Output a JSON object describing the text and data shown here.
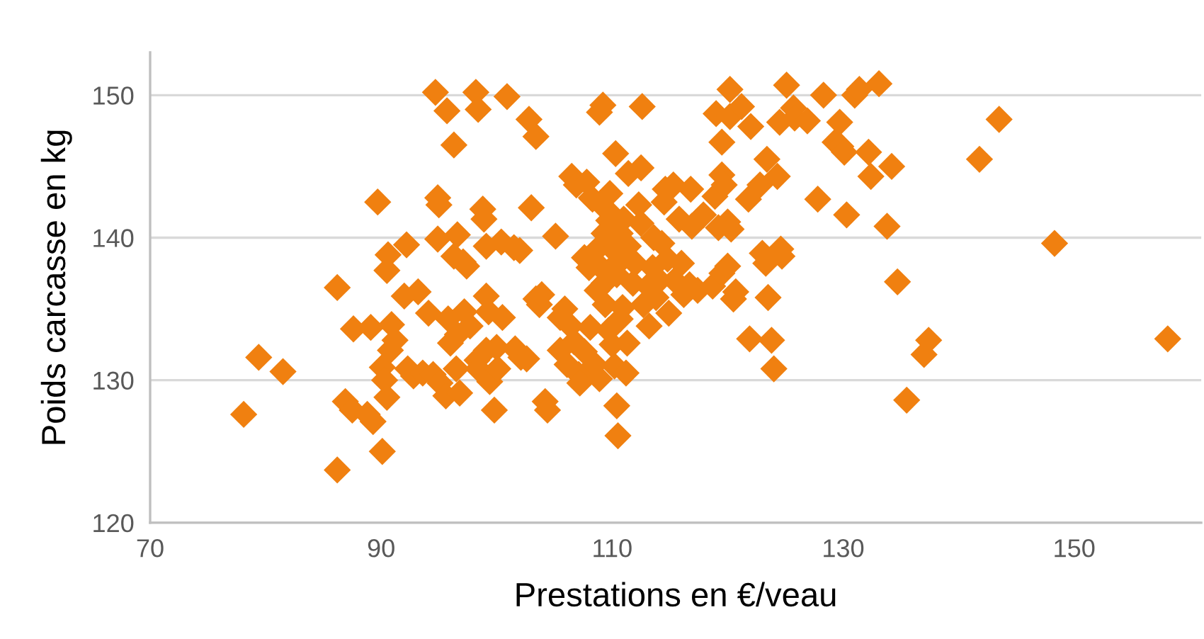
{
  "chart_data": {
    "type": "scatter",
    "xlabel": "Prestations en €/veau",
    "ylabel": "Poids carcasse en kg",
    "xlim": [
      70,
      161
    ],
    "xticks": [
      70,
      90,
      110,
      130,
      150
    ],
    "ylim": [
      120,
      153
    ],
    "yticks": [
      120,
      130,
      140,
      150
    ],
    "grid": "y",
    "marker": "diamond",
    "series": [
      {
        "color": "#f08010",
        "x": [
          78.1,
          79.4,
          81.5,
          86.2,
          86.2,
          86.9,
          87.5,
          87.6,
          88.8,
          89.3,
          89.1,
          89.7,
          90.1,
          90.1,
          90.3,
          90.6,
          90.5,
          90.5,
          90.9,
          90.8,
          91.2,
          92.2,
          92.0,
          92.3,
          92.8,
          93.2,
          93.6,
          94.1,
          94.5,
          94.7,
          94.9,
          95.0,
          94.9,
          95.1,
          95.6,
          95.7,
          95.8,
          96.0,
          96.3,
          96.3,
          96.5,
          96.6,
          96.6,
          96.8,
          97.1,
          97.2,
          97.4,
          97.7,
          98.2,
          98.4,
          98.3,
          98.4,
          98.8,
          98.9,
          99.1,
          99.1,
          99.1,
          99.3,
          99.4,
          99.8,
          100.0,
          100.1,
          100.4,
          100.5,
          100.9,
          101.5,
          101.6,
          102.0,
          102.1,
          102.6,
          102.8,
          103.0,
          103.4,
          103.4,
          103.7,
          103.9,
          104.2,
          104.4,
          105.1,
          105.5,
          105.5,
          105.9,
          106.1,
          106.4,
          106.5,
          106.7,
          106.9,
          107.1,
          107.2,
          107.6,
          107.6,
          107.8,
          108.0,
          108.1,
          108.2,
          108.3,
          108.5,
          108.6,
          108.7,
          108.8,
          108.9,
          108.9,
          109.2,
          109.3,
          109.3,
          109.4,
          109.6,
          109.7,
          109.7,
          109.8,
          109.9,
          110.0,
          110.2,
          110.2,
          110.3,
          110.4,
          110.4,
          110.4,
          110.5,
          110.7,
          110.7,
          110.9,
          110.9,
          111.0,
          111.2,
          111.3,
          111.4,
          111.4,
          111.8,
          112.0,
          112.3,
          112.5,
          112.5,
          112.6,
          112.7,
          113.1,
          113.2,
          113.5,
          113.6,
          113.8,
          114.1,
          114.3,
          114.5,
          114.6,
          114.8,
          114.9,
          115.3,
          115.4,
          115.8,
          116.0,
          116.2,
          116.7,
          116.8,
          116.9,
          117.4,
          117.9,
          118.7,
          118.9,
          119.0,
          119.2,
          119.5,
          119.5,
          119.5,
          119.7,
          120.0,
          120.0,
          120.2,
          120.2,
          120.3,
          120.5,
          120.7,
          121.2,
          121.8,
          121.9,
          122.0,
          122.8,
          123.0,
          123.3,
          123.4,
          123.5,
          123.8,
          124.3,
          124.5,
          124.6,
          124.7,
          125.1,
          125.7,
          125.8,
          124.0,
          126.9,
          127.8,
          128.3,
          129.3,
          129.7,
          129.8,
          130.1,
          130.3,
          131.0,
          131.4,
          132.2,
          132.4,
          133.1,
          133.8,
          134.2,
          134.7,
          135.5,
          137.0,
          137.4,
          141.8,
          143.5,
          148.3,
          158.1
        ],
        "values": [
          127.6,
          131.6,
          130.6,
          123.7,
          136.5,
          128.5,
          127.9,
          133.6,
          127.6,
          127.1,
          133.7,
          142.5,
          125.0,
          130.9,
          130.0,
          138.8,
          137.7,
          128.8,
          133.9,
          132.1,
          132.8,
          139.5,
          135.9,
          130.8,
          130.3,
          136.2,
          130.5,
          134.7,
          130.4,
          150.2,
          142.8,
          142.3,
          139.9,
          129.8,
          128.9,
          148.9,
          134.3,
          132.6,
          138.7,
          146.5,
          130.8,
          140.2,
          133.2,
          129.1,
          138.3,
          134.8,
          138.0,
          133.8,
          150.2,
          149.0,
          131.4,
          130.8,
          142.0,
          141.3,
          139.4,
          132.1,
          135.9,
          134.8,
          129.9,
          127.9,
          132.3,
          130.8,
          139.7,
          134.4,
          149.9,
          139.3,
          132.2,
          139.1,
          131.6,
          131.5,
          148.3,
          142.1,
          147.1,
          135.7,
          135.3,
          136.0,
          128.5,
          127.9,
          140.1,
          132.1,
          134.4,
          135.0,
          131.1,
          133.8,
          144.3,
          132.7,
          143.7,
          130.4,
          129.8,
          138.6,
          132.0,
          143.9,
          137.9,
          133.7,
          142.8,
          142.7,
          131.1,
          139.1,
          136.3,
          138.1,
          130.1,
          148.8,
          149.3,
          140.3,
          136.8,
          135.3,
          141.9,
          141.2,
          133.5,
          143.1,
          137.8,
          132.5,
          131.0,
          139.6,
          145.9,
          138.9,
          137.4,
          128.2,
          126.1,
          140.3,
          134.3,
          135.1,
          138.5,
          141.3,
          130.5,
          132.6,
          139.4,
          144.5,
          136.8,
          138.2,
          142.3,
          141.0,
          144.9,
          149.2,
          135.3,
          136.6,
          133.8,
          137.9,
          140.0,
          135.8,
          137.0,
          139.6,
          142.5,
          143.4,
          138.5,
          134.7,
          143.7,
          137.0,
          141.3,
          138.2,
          136.0,
          136.7,
          143.4,
          140.8,
          136.3,
          141.6,
          136.6,
          142.9,
          148.7,
          140.7,
          137.5,
          144.4,
          146.7,
          143.7,
          141.1,
          138.0,
          150.4,
          148.5,
          140.6,
          135.7,
          136.2,
          149.2,
          142.7,
          132.9,
          147.8,
          143.7,
          138.9,
          138.2,
          145.5,
          135.8,
          132.8,
          144.3,
          148.1,
          139.2,
          138.7,
          150.7,
          149.1,
          148.4,
          130.8,
          148.2,
          142.7,
          150.0,
          146.7,
          148.1,
          146.4,
          146.0,
          141.6,
          150.0,
          150.4,
          146.0,
          144.3,
          150.8,
          140.8,
          145.0,
          136.9,
          128.6,
          131.8,
          132.8,
          145.5,
          148.3,
          139.6,
          132.9
        ]
      }
    ]
  }
}
